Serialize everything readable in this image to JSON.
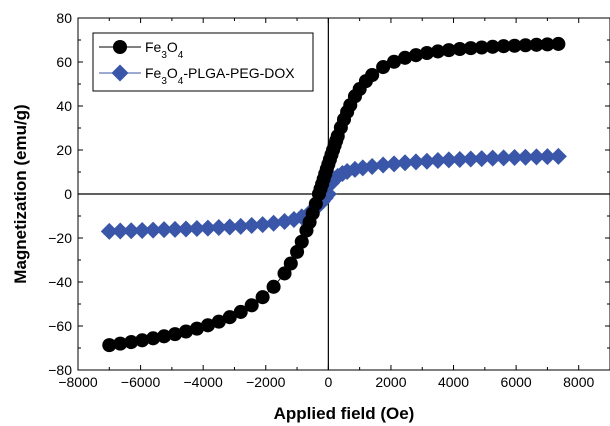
{
  "chart_data": {
    "type": "scatter",
    "xlabel": "Applied field (Oe)",
    "ylabel": "Magnetization (emu/g)",
    "xlim": [
      -8000,
      9000
    ],
    "ylim": [
      -80,
      80
    ],
    "x_ticks": [
      -8000,
      -6000,
      -4000,
      -2000,
      0,
      2000,
      4000,
      6000,
      8000
    ],
    "y_ticks": [
      -80,
      -60,
      -40,
      -20,
      0,
      20,
      40,
      60,
      80
    ],
    "x_tick_labels": [
      "−8000",
      "−6000",
      "−4000",
      "−2000",
      "0",
      "2000",
      "4000",
      "6000",
      "8000"
    ],
    "y_tick_labels": [
      "−80",
      "−60",
      "−40",
      "−20",
      "0",
      "20",
      "40",
      "60",
      "80"
    ],
    "grid": false,
    "legend_position": "top-left",
    "series": [
      {
        "name_parts": [
          {
            "text": "Fe",
            "sub": false
          },
          {
            "text": "3",
            "sub": true
          },
          {
            "text": "O",
            "sub": false
          },
          {
            "text": "4",
            "sub": true
          }
        ],
        "color": "#000000",
        "marker": "circle",
        "ms": 34.6,
        "mr": 9.5,
        "x": [
          -7000,
          -6650,
          -6300,
          -5950,
          -5600,
          -5250,
          -4900,
          -4550,
          -4200,
          -3850,
          -3500,
          -3150,
          -2800,
          -2450,
          -2100,
          -1750,
          -1400,
          -1200,
          -1000,
          -850,
          -700,
          -600,
          -500,
          -400,
          -300,
          -250,
          -200,
          -150,
          -100,
          -50,
          0,
          50,
          100,
          150,
          200,
          250,
          300,
          400,
          500,
          600,
          700,
          850,
          1000,
          1200,
          1400,
          1750,
          2100,
          2450,
          2800,
          3150,
          3500,
          3850,
          4200,
          4550,
          4900,
          5250,
          5600,
          5950,
          6300,
          6650,
          7000,
          7350
        ],
        "y": [
          -68.7,
          -68.0,
          -67.3,
          -66.5,
          -65.6,
          -64.7,
          -63.7,
          -62.5,
          -61.2,
          -59.7,
          -58.0,
          -56.0,
          -53.6,
          -50.6,
          -46.9,
          -42.2,
          -36.1,
          -31.6,
          -26.3,
          -21.7,
          -16.6,
          -12.8,
          -8.8,
          -4.5,
          0.0,
          2.3,
          4.5,
          6.8,
          9.1,
          11.3,
          13.5,
          15.7,
          17.9,
          20.0,
          22.1,
          24.2,
          26.3,
          30.2,
          33.9,
          37.3,
          40.4,
          44.4,
          47.7,
          51.3,
          54.1,
          57.7,
          60.1,
          61.9,
          63.1,
          64.1,
          64.8,
          65.4,
          65.9,
          66.3,
          66.6,
          66.9,
          67.2,
          67.4,
          67.6,
          67.8,
          68.0,
          68.2
        ]
      },
      {
        "name_parts": [
          {
            "text": "Fe",
            "sub": false
          },
          {
            "text": "3",
            "sub": true
          },
          {
            "text": "O",
            "sub": false
          },
          {
            "text": "4",
            "sub": true
          },
          {
            "text": "-PLGA-PEG-DOX",
            "sub": false
          }
        ],
        "color": "#3a56a8",
        "marker": "diamond",
        "ms": 7.3,
        "mr": 8.5,
        "x": [
          -7000,
          -6650,
          -6300,
          -5950,
          -5600,
          -5250,
          -4900,
          -4550,
          -4200,
          -3850,
          -3500,
          -3150,
          -2800,
          -2450,
          -2100,
          -1750,
          -1400,
          -1100,
          -850,
          -600,
          -450,
          -300,
          -200,
          -100,
          0,
          100,
          200,
          300,
          450,
          600,
          850,
          1100,
          1400,
          1750,
          2100,
          2450,
          2800,
          3150,
          3500,
          3850,
          4200,
          4550,
          4900,
          5250,
          5600,
          5950,
          6300,
          6650,
          7000,
          7350
        ],
        "y": [
          -17.0,
          -16.8,
          -16.7,
          -16.6,
          -16.4,
          -16.2,
          -16.1,
          -15.9,
          -15.7,
          -15.5,
          -15.2,
          -15.0,
          -14.7,
          -14.3,
          -13.9,
          -13.3,
          -12.5,
          -11.6,
          -10.4,
          -8.6,
          -7.0,
          -5.0,
          -3.5,
          -1.8,
          0.0,
          5.0,
          6.8,
          8.0,
          9.3,
          10.2,
          11.2,
          11.9,
          12.5,
          13.2,
          13.7,
          14.2,
          14.6,
          14.9,
          15.2,
          15.5,
          15.7,
          15.9,
          16.1,
          16.3,
          16.4,
          16.6,
          16.7,
          16.9,
          17.0,
          17.1
        ]
      }
    ]
  }
}
